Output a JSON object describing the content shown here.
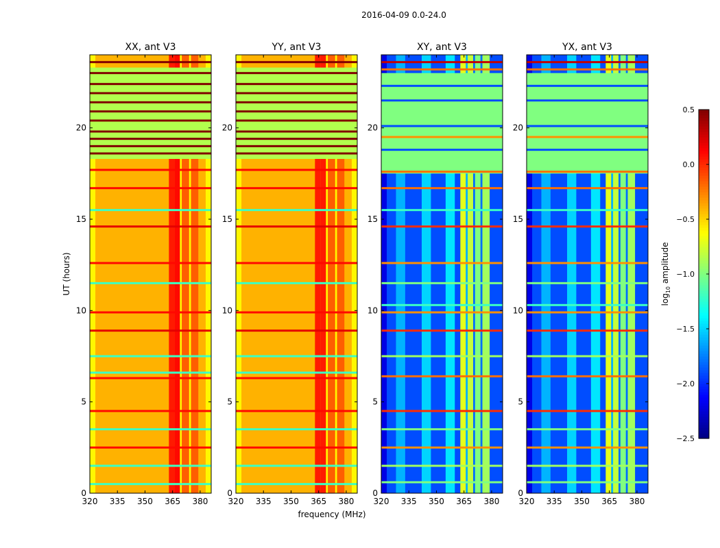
{
  "chart_data": {
    "type": "heatmap",
    "title": "2016-04-09 0.0-24.0",
    "xlabel": "frequency (MHz)",
    "ylabel": "UT (hours)",
    "xlim": [
      320,
      386
    ],
    "ylim": [
      0,
      24
    ],
    "xticks": [
      "320",
      "335",
      "350",
      "365",
      "380"
    ],
    "xtick_values": [
      320,
      335,
      350,
      365,
      380
    ],
    "yticks": [
      "0",
      "5",
      "10",
      "15",
      "20"
    ],
    "ytick_values": [
      0,
      5,
      10,
      15,
      20
    ],
    "colorbar": {
      "label": "log10 amplitude",
      "label_base": "log",
      "label_sub": "10",
      "label_rest": " amplitude",
      "range": [
        -2.5,
        0.5
      ],
      "ticks": [
        "0.5",
        "0.0",
        "−0.5",
        "−1.0",
        "−1.5",
        "−2.0",
        "−2.5"
      ],
      "tick_values": [
        0.5,
        0,
        -0.5,
        -1,
        -1.5,
        -2,
        -2.5
      ],
      "colormap": "jet"
    },
    "panels": [
      {
        "title": "XX, ant V3",
        "kind": "auto",
        "base": -0.4,
        "columns": [
          [
            320,
            323,
            -0.6
          ],
          [
            363,
            366,
            0.05
          ],
          [
            366,
            369,
            0.1
          ],
          [
            369,
            370,
            -0.6
          ],
          [
            370,
            374,
            -0.15
          ],
          [
            374,
            375,
            -0.6
          ],
          [
            375,
            379,
            -0.15
          ],
          [
            383,
            386,
            -0.6
          ]
        ],
        "flag_band": [
          18.3,
          23.3,
          -0.85
        ],
        "stripes": [
          [
            0.5,
            -1.2
          ],
          [
            1.5,
            -1.2
          ],
          [
            2.5,
            0.1
          ],
          [
            3.5,
            -1.2
          ],
          [
            4.5,
            0.1
          ],
          [
            6.3,
            0.1
          ],
          [
            6.6,
            -1.2
          ],
          [
            7.5,
            -1.2
          ],
          [
            8.9,
            0.2
          ],
          [
            9.9,
            0.1
          ],
          [
            11.5,
            -1.2
          ],
          [
            12.6,
            0.1
          ],
          [
            14.6,
            0.2
          ],
          [
            15.5,
            -1.2
          ],
          [
            16.7,
            0.1
          ],
          [
            17.7,
            0.1
          ],
          [
            18.6,
            0.5
          ],
          [
            19.0,
            0.5
          ],
          [
            19.4,
            0.5
          ],
          [
            19.8,
            0.5
          ],
          [
            20.4,
            0.5
          ],
          [
            20.9,
            0.5
          ],
          [
            21.4,
            0.5
          ],
          [
            21.9,
            0.5
          ],
          [
            22.4,
            0.5
          ],
          [
            23.0,
            0.5
          ],
          [
            23.6,
            0.5
          ]
        ]
      },
      {
        "title": "YY, ant V3",
        "kind": "auto",
        "base": -0.4,
        "columns": [
          [
            320,
            323,
            -0.6
          ],
          [
            363,
            366,
            0.05
          ],
          [
            366,
            369,
            0.05
          ],
          [
            369,
            370,
            -0.6
          ],
          [
            370,
            374,
            -0.15
          ],
          [
            374,
            375,
            -0.6
          ],
          [
            375,
            379,
            -0.15
          ],
          [
            383,
            386,
            -0.6
          ]
        ],
        "flag_band": [
          18.3,
          23.3,
          -0.85
        ],
        "stripes": [
          [
            0.5,
            -1.2
          ],
          [
            1.5,
            -1.2
          ],
          [
            2.5,
            0.1
          ],
          [
            3.5,
            -1.2
          ],
          [
            4.5,
            0.1
          ],
          [
            6.3,
            0.1
          ],
          [
            6.6,
            -1.2
          ],
          [
            7.5,
            -1.2
          ],
          [
            8.9,
            0.2
          ],
          [
            9.9,
            0.1
          ],
          [
            11.5,
            -1.2
          ],
          [
            12.6,
            0.1
          ],
          [
            14.6,
            0.2
          ],
          [
            15.5,
            -1.2
          ],
          [
            16.7,
            0.1
          ],
          [
            17.7,
            0.1
          ],
          [
            18.6,
            0.5
          ],
          [
            19.0,
            0.5
          ],
          [
            19.4,
            0.5
          ],
          [
            19.8,
            0.5
          ],
          [
            20.4,
            0.5
          ],
          [
            20.9,
            0.5
          ],
          [
            21.4,
            0.5
          ],
          [
            21.9,
            0.5
          ],
          [
            22.4,
            0.5
          ],
          [
            23.0,
            0.5
          ],
          [
            23.6,
            0.5
          ]
        ]
      },
      {
        "title": "XY, ant V3",
        "kind": "cross",
        "base": -1.9,
        "columns": [
          [
            320,
            323,
            -2.2
          ],
          [
            328,
            333,
            -1.6
          ],
          [
            342,
            347,
            -1.5
          ],
          [
            355,
            360,
            -1.45
          ],
          [
            363,
            366,
            -0.7
          ],
          [
            366,
            367,
            -1.6
          ],
          [
            367,
            370,
            -0.8
          ],
          [
            370,
            371,
            -1.8
          ],
          [
            371,
            374,
            -1.0
          ],
          [
            374,
            375,
            -1.8
          ],
          [
            375,
            379,
            -0.9
          ],
          [
            379,
            380,
            -1.9
          ]
        ],
        "flag_band": [
          17.5,
          23.0,
          -1.0
        ],
        "stripes": [
          [
            0.6,
            -1.0
          ],
          [
            1.5,
            -0.9
          ],
          [
            2.5,
            -0.3
          ],
          [
            3.5,
            -1.0
          ],
          [
            4.5,
            0.0
          ],
          [
            6.4,
            -0.2
          ],
          [
            7.5,
            -0.9
          ],
          [
            8.9,
            0.0
          ],
          [
            9.9,
            -0.3
          ],
          [
            10.3,
            -1.2
          ],
          [
            11.5,
            -1.0
          ],
          [
            12.6,
            -0.3
          ],
          [
            14.6,
            0.0
          ],
          [
            15.5,
            -1.2
          ],
          [
            16.7,
            -0.2
          ],
          [
            17.6,
            -0.2
          ],
          [
            18.8,
            -1.9
          ],
          [
            19.5,
            -0.3
          ],
          [
            20.1,
            -1.9
          ],
          [
            21.5,
            -1.9
          ],
          [
            22.3,
            -1.9
          ],
          [
            23.2,
            -0.2
          ],
          [
            23.6,
            0.3
          ]
        ]
      },
      {
        "title": "YX, ant V3",
        "kind": "cross",
        "base": -1.9,
        "columns": [
          [
            320,
            323,
            -2.2
          ],
          [
            328,
            333,
            -1.6
          ],
          [
            342,
            347,
            -1.5
          ],
          [
            355,
            360,
            -1.45
          ],
          [
            363,
            366,
            -0.7
          ],
          [
            366,
            367,
            -1.6
          ],
          [
            367,
            370,
            -0.8
          ],
          [
            370,
            371,
            -1.8
          ],
          [
            371,
            374,
            -1.0
          ],
          [
            374,
            375,
            -1.8
          ],
          [
            375,
            379,
            -0.9
          ],
          [
            379,
            380,
            -1.9
          ]
        ],
        "flag_band": [
          17.5,
          23.0,
          -1.0
        ],
        "stripes": [
          [
            0.6,
            -1.0
          ],
          [
            1.5,
            -0.9
          ],
          [
            2.5,
            -0.3
          ],
          [
            3.5,
            -1.0
          ],
          [
            4.5,
            0.0
          ],
          [
            6.4,
            -0.2
          ],
          [
            7.5,
            -0.9
          ],
          [
            8.9,
            0.0
          ],
          [
            9.9,
            -0.3
          ],
          [
            10.3,
            -1.2
          ],
          [
            11.5,
            -1.0
          ],
          [
            12.6,
            -0.3
          ],
          [
            14.6,
            0.0
          ],
          [
            15.5,
            -1.2
          ],
          [
            16.7,
            -0.2
          ],
          [
            17.6,
            -0.2
          ],
          [
            18.8,
            -1.9
          ],
          [
            19.5,
            -0.3
          ],
          [
            20.1,
            -1.9
          ],
          [
            21.5,
            -1.9
          ],
          [
            22.3,
            -1.9
          ],
          [
            23.2,
            -0.2
          ],
          [
            23.6,
            0.3
          ]
        ]
      }
    ]
  }
}
